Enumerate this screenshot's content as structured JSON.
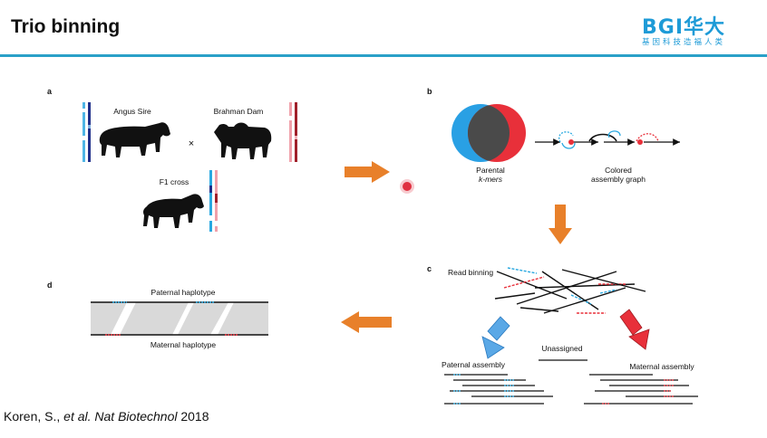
{
  "slide": {
    "title": "Trio binning",
    "logo": {
      "main": "BGI华大",
      "sub": "基因科技造福人类"
    },
    "citation": {
      "author": "Koren, S., ",
      "etal": "et al.",
      "journal": " Nat Biotechnol",
      "year": "  2018"
    }
  },
  "panels": {
    "a": {
      "letter": "a",
      "sire": "Angus Sire",
      "cross_symbol": "×",
      "dam": "Brahman Dam",
      "f1": "F1 cross"
    },
    "b": {
      "letter": "b",
      "parental_1": "Parental",
      "parental_2": "k-mers",
      "graph_1": "Colored",
      "graph_2": "assembly graph"
    },
    "c": {
      "letter": "c",
      "read_binning": "Read binning",
      "unassigned": "Unassigned",
      "paternal": "Paternal assembly",
      "maternal": "Maternal assembly"
    },
    "d": {
      "letter": "d",
      "paternal": "Paternal haplotype",
      "maternal": "Maternal haplotype"
    }
  },
  "colors": {
    "paternal": "#29a8e0",
    "maternal": "#e8303a",
    "arrow": "#e8802a",
    "rule": "#2aa0c8",
    "brand": "#1e9bd7"
  }
}
